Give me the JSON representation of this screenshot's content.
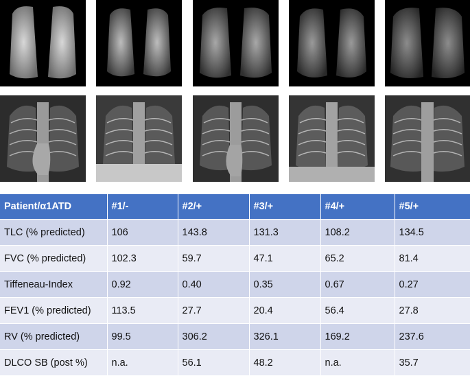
{
  "figure": {
    "top_row": [
      "ct-projection-1",
      "ct-projection-2",
      "ct-projection-3",
      "ct-projection-4",
      "ct-projection-5"
    ],
    "bottom_row": [
      "chest-xray-1",
      "chest-xray-2",
      "chest-xray-3",
      "chest-xray-4",
      "chest-xray-5"
    ]
  },
  "table": {
    "headers": [
      "Patient/α1ATD",
      "#1/-",
      "#2/+",
      "#3/+",
      "#4/+",
      "#5/+"
    ],
    "rows": [
      [
        "TLC (% predicted)",
        "106",
        "143.8",
        "131.3",
        "108.2",
        "134.5"
      ],
      [
        "FVC (% predicted)",
        "102.3",
        "59.7",
        "47.1",
        "65.2",
        "81.4"
      ],
      [
        "Tiffeneau-Index",
        "0.92",
        "0.40",
        "0.35",
        "0.67",
        "0.27"
      ],
      [
        "FEV1 (% predicted)",
        "113.5",
        "27.7",
        "20.4",
        "56.4",
        "27.8"
      ],
      [
        "RV (% predicted)",
        "99.5",
        "306.2",
        "326.1",
        "169.2",
        "237.6"
      ],
      [
        "DLCO SB (post %)",
        "n.a.",
        "56.1",
        "48.2",
        "n.a.",
        "35.7"
      ]
    ]
  }
}
